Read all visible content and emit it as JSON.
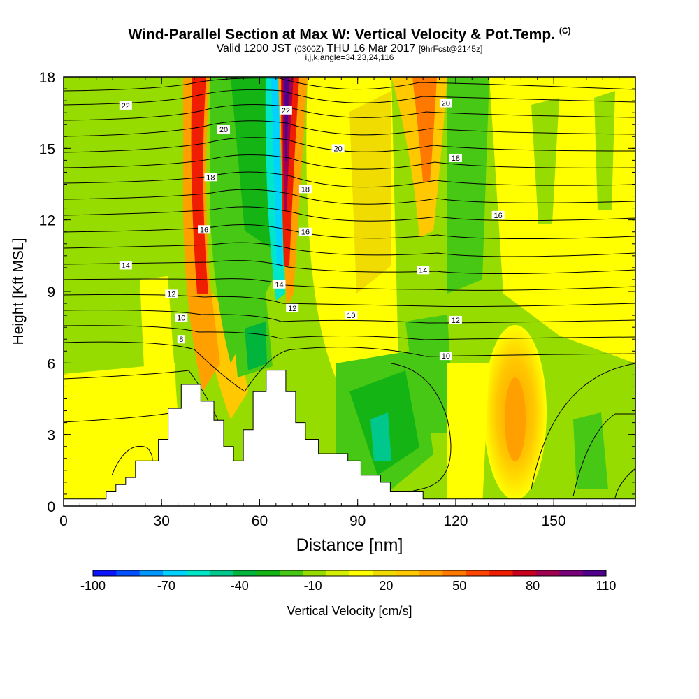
{
  "title": {
    "line1": "Wind-Parallel Section at Max W: Vertical Velocity & Pot.Temp.",
    "line1_copyright": "(C)",
    "line2_valid": "Valid 1200 JST",
    "line2_utc": "(0300Z)",
    "line2_date": "THU 16 Mar 2017",
    "line2_fcst": "[9hrFcst@2145z]",
    "line3": "i,j,k,angle=34,23,24,116"
  },
  "chart_data": {
    "type": "heatmap",
    "xlabel": "Distance [nm]",
    "ylabel": "Height [Kft MSL]",
    "xlim": [
      0,
      175
    ],
    "ylim": [
      0,
      18
    ],
    "x_ticks": [
      0,
      30,
      60,
      90,
      120,
      150
    ],
    "y_ticks": [
      0,
      3,
      6,
      9,
      12,
      15,
      18
    ],
    "grid": false,
    "colorbar": {
      "label": "Vertical Velocity [cm/s]",
      "tick_labels": [
        "-100",
        "-70",
        "-40",
        "-10",
        "20",
        "50",
        "80",
        "110"
      ],
      "levels": [
        -100,
        -90,
        -80,
        -70,
        -60,
        -50,
        -40,
        -30,
        -20,
        -10,
        0,
        10,
        20,
        30,
        40,
        50,
        60,
        70,
        80,
        90,
        100,
        110
      ],
      "colors": [
        "#0a14ff",
        "#0050ff",
        "#0096ff",
        "#00d2ff",
        "#00e6c8",
        "#00c88c",
        "#00b43c",
        "#14b414",
        "#46c814",
        "#96dc00",
        "#d2f000",
        "#ffff00",
        "#f0dc00",
        "#ffc800",
        "#ffa000",
        "#ff7800",
        "#ff4600",
        "#f01e00",
        "#c8001e",
        "#a00050",
        "#780078",
        "#50008c"
      ]
    },
    "potential_temperature_contour_labels": [
      {
        "label": "22",
        "x": 19,
        "y": 16.8
      },
      {
        "label": "20",
        "x": 49,
        "y": 15.8
      },
      {
        "label": "22",
        "x": 68,
        "y": 16.6
      },
      {
        "label": "20",
        "x": 84,
        "y": 15.0
      },
      {
        "label": "20",
        "x": 117,
        "y": 16.9
      },
      {
        "label": "18",
        "x": 120,
        "y": 14.6
      },
      {
        "label": "18",
        "x": 45,
        "y": 13.8
      },
      {
        "label": "18",
        "x": 74,
        "y": 13.3
      },
      {
        "label": "16",
        "x": 133,
        "y": 12.2
      },
      {
        "label": "16",
        "x": 43,
        "y": 11.6
      },
      {
        "label": "16",
        "x": 74,
        "y": 11.5
      },
      {
        "label": "14",
        "x": 19,
        "y": 10.1
      },
      {
        "label": "14",
        "x": 66,
        "y": 9.3
      },
      {
        "label": "14",
        "x": 110,
        "y": 9.9
      },
      {
        "label": "12",
        "x": 33,
        "y": 8.9
      },
      {
        "label": "12",
        "x": 70,
        "y": 8.3
      },
      {
        "label": "12",
        "x": 120,
        "y": 7.8
      },
      {
        "label": "10",
        "x": 36,
        "y": 7.9
      },
      {
        "label": "10",
        "x": 88,
        "y": 8.0
      },
      {
        "label": "10",
        "x": 117,
        "y": 6.3
      },
      {
        "label": "8",
        "x": 36,
        "y": 7.0
      }
    ],
    "terrain_profile_kft": [
      {
        "x": 0,
        "h": 0.3
      },
      {
        "x": 13,
        "h": 0.3
      },
      {
        "x": 13,
        "h": 0.6
      },
      {
        "x": 16,
        "h": 0.6
      },
      {
        "x": 16,
        "h": 0.9
      },
      {
        "x": 19,
        "h": 0.9
      },
      {
        "x": 19,
        "h": 1.2
      },
      {
        "x": 22,
        "h": 1.2
      },
      {
        "x": 22,
        "h": 1.9
      },
      {
        "x": 29,
        "h": 1.9
      },
      {
        "x": 29,
        "h": 2.8
      },
      {
        "x": 32,
        "h": 2.8
      },
      {
        "x": 32,
        "h": 4.1
      },
      {
        "x": 36,
        "h": 4.1
      },
      {
        "x": 36,
        "h": 5.1
      },
      {
        "x": 42,
        "h": 5.1
      },
      {
        "x": 42,
        "h": 4.4
      },
      {
        "x": 46,
        "h": 4.4
      },
      {
        "x": 46,
        "h": 3.6
      },
      {
        "x": 49,
        "h": 3.6
      },
      {
        "x": 49,
        "h": 2.5
      },
      {
        "x": 52,
        "h": 2.5
      },
      {
        "x": 52,
        "h": 1.9
      },
      {
        "x": 55,
        "h": 1.9
      },
      {
        "x": 55,
        "h": 3.2
      },
      {
        "x": 58,
        "h": 3.2
      },
      {
        "x": 58,
        "h": 4.8
      },
      {
        "x": 62,
        "h": 4.8
      },
      {
        "x": 62,
        "h": 5.7
      },
      {
        "x": 68,
        "h": 5.7
      },
      {
        "x": 68,
        "h": 4.8
      },
      {
        "x": 71,
        "h": 4.8
      },
      {
        "x": 71,
        "h": 3.5
      },
      {
        "x": 74,
        "h": 3.5
      },
      {
        "x": 74,
        "h": 2.8
      },
      {
        "x": 78,
        "h": 2.8
      },
      {
        "x": 78,
        "h": 2.2
      },
      {
        "x": 87,
        "h": 2.2
      },
      {
        "x": 87,
        "h": 1.9
      },
      {
        "x": 91,
        "h": 1.9
      },
      {
        "x": 91,
        "h": 1.3
      },
      {
        "x": 97,
        "h": 1.3
      },
      {
        "x": 97,
        "h": 1.0
      },
      {
        "x": 100,
        "h": 1.0
      },
      {
        "x": 100,
        "h": 0.6
      },
      {
        "x": 110,
        "h": 0.6
      },
      {
        "x": 110,
        "h": 0.3
      },
      {
        "x": 175,
        "h": 0.3
      }
    ]
  }
}
